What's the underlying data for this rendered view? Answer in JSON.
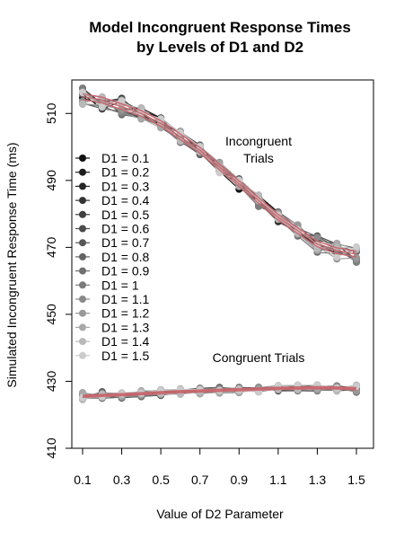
{
  "chart_data": {
    "type": "line",
    "title": "Model Incongruent Response Times",
    "subtitle": "by Levels of D1 and D2",
    "xlabel": "Value of D2 Parameter",
    "ylabel": "Simulated Incongruent Response Time (ms)",
    "xlim": [
      0.1,
      1.5
    ],
    "ylim": [
      410,
      520
    ],
    "x_ticks": [
      "0.1",
      "0.3",
      "0.5",
      "0.7",
      "0.9",
      "1.1",
      "1.3",
      "1.5"
    ],
    "y_ticks": [
      "410",
      "430",
      "450",
      "470",
      "490",
      "510"
    ],
    "x": [
      0.1,
      0.2,
      0.3,
      0.4,
      0.5,
      0.6,
      0.7,
      0.8,
      0.9,
      1.0,
      1.1,
      1.2,
      1.3,
      1.4,
      1.5
    ],
    "incongruent_base": [
      515,
      514,
      512,
      510,
      507,
      503,
      499,
      494,
      489,
      484,
      479,
      475,
      471,
      469,
      468
    ],
    "congruent_base": [
      425.5,
      425.8,
      426.0,
      426.3,
      426.6,
      426.9,
      427.1,
      427.3,
      427.5,
      427.7,
      427.9,
      428.0,
      428.1,
      428.0,
      427.8
    ],
    "annotations": {
      "incongruent_line1": "Incongruent",
      "incongruent_line2": "Trials",
      "congruent": "Congruent Trials"
    },
    "legend_position": "left-middle",
    "series": [
      {
        "name": "D1 = 0.1",
        "color": "#111111"
      },
      {
        "name": "D1 = 0.2",
        "color": "#1c1c1c"
      },
      {
        "name": "D1 = 0.3",
        "color": "#272727"
      },
      {
        "name": "D1 = 0.4",
        "color": "#333333"
      },
      {
        "name": "D1 = 0.5",
        "color": "#3f3f3f"
      },
      {
        "name": "D1 = 0.6",
        "color": "#4b4b4b"
      },
      {
        "name": "D1 = 0.7",
        "color": "#575757"
      },
      {
        "name": "D1 = 0.8",
        "color": "#636363"
      },
      {
        "name": "D1 = 0.9",
        "color": "#6f6f6f"
      },
      {
        "name": "D1 = 1",
        "color": "#7c7c7c"
      },
      {
        "name": "D1 = 1.1",
        "color": "#8a8a8a"
      },
      {
        "name": "D1 = 1.2",
        "color": "#989898"
      },
      {
        "name": "D1 = 1.3",
        "color": "#a8a8a8"
      },
      {
        "name": "D1 = 1.4",
        "color": "#b9b9b9"
      },
      {
        "name": "D1 = 1.5",
        "color": "#cccccc"
      }
    ],
    "fit_color": "#c9656b"
  }
}
